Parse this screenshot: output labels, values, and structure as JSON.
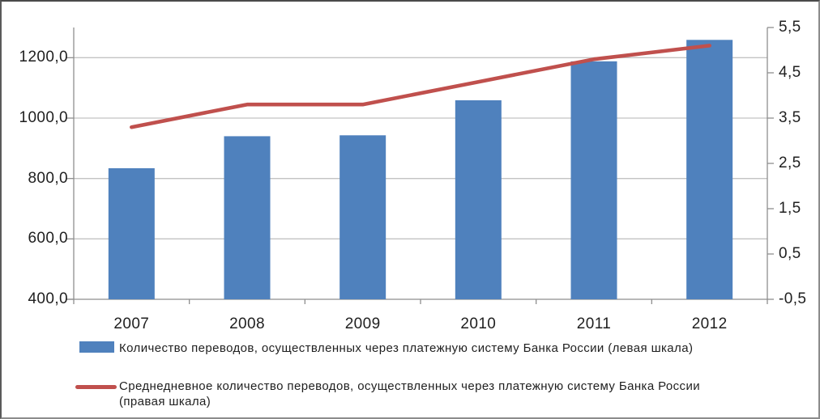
{
  "chart_data": {
    "type": "bar",
    "subtype": "combo-bar-line",
    "categories": [
      "2007",
      "2008",
      "2009",
      "2010",
      "2011",
      "2012"
    ],
    "series": [
      {
        "name": "Количество переводов, осуществленных через платежную систему Банка России (левая шкала)",
        "type": "bar",
        "axis": "left",
        "color": "#4F81BD",
        "values": [
          834,
          940,
          943,
          1059,
          1188,
          1259
        ]
      },
      {
        "name": "Среднедневное количество переводов, осуществленных через платежную систему Банка России (правая шкала)",
        "type": "line",
        "axis": "right",
        "color": "#C0504D",
        "values": [
          3.3,
          3.8,
          3.8,
          4.3,
          4.8,
          5.1
        ]
      }
    ],
    "left_axis": {
      "min": 400,
      "max": 1300,
      "tick_step": 200,
      "tick_labels": [
        "400,0",
        "600,0",
        "800,0",
        "1000,0",
        "1200,0"
      ]
    },
    "right_axis": {
      "min": -0.5,
      "max": 5.5,
      "tick_step": 1.0,
      "tick_labels": [
        "-0,5",
        "0,5",
        "1,5",
        "2,5",
        "3,5",
        "4,5",
        "5,5"
      ]
    },
    "grid": true,
    "legend_position": "bottom",
    "style": {
      "grid_color": "#c3c3c3",
      "axis_color": "#8e8e8e",
      "text_color": "#1f1f1f",
      "background": "#ffffff"
    }
  },
  "legend": {
    "items": [
      {
        "swatch": "bar-swatch",
        "color": "#4F81BD",
        "lines": [
          "Количество переводов, осуществленных через платежную систему Банка России (левая шкала)"
        ]
      },
      {
        "swatch": "line-swatch",
        "color": "#C0504D",
        "lines": [
          "Среднедневное количество переводов, осуществленных через платежную систему Банка России",
          "(правая шкала)"
        ]
      }
    ]
  }
}
